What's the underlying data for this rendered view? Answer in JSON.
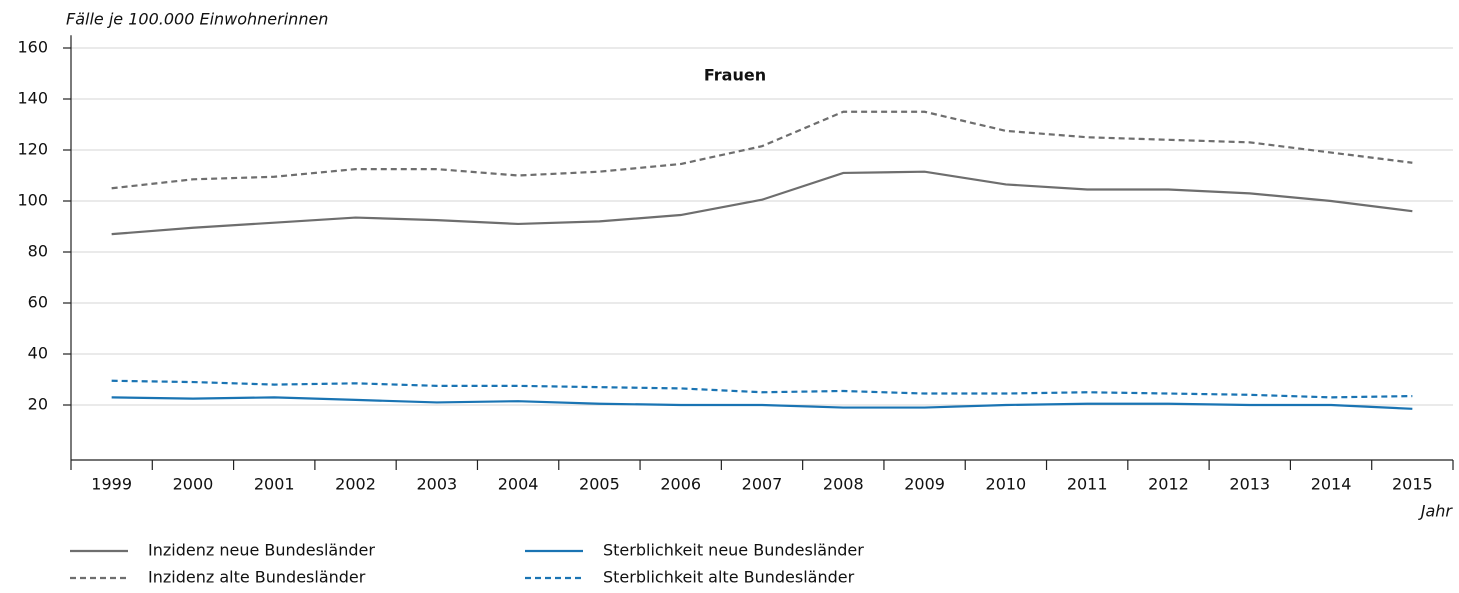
{
  "chart_data": {
    "type": "line",
    "title": "Frauen",
    "y_label": "Fälle je 100.000 Einwohnerinnen",
    "x_label": "Jahr",
    "categories": [
      "1999",
      "2000",
      "2001",
      "2002",
      "2003",
      "2004",
      "2005",
      "2006",
      "2007",
      "2008",
      "2009",
      "2010",
      "2011",
      "2012",
      "2013",
      "2014",
      "2015"
    ],
    "series": [
      {
        "name": "Inzidenz neue Bundesländer",
        "color": "#6e6e6e",
        "dashed": false,
        "values": [
          87,
          89.5,
          91.5,
          93.5,
          92.5,
          91,
          92,
          94.5,
          100.5,
          111,
          111.5,
          106.5,
          104.5,
          104.5,
          103,
          100,
          96
        ]
      },
      {
        "name": "Inzidenz alte Bundesländer",
        "color": "#6e6e6e",
        "dashed": true,
        "values": [
          105,
          108.5,
          109.5,
          112.5,
          112.5,
          110,
          111.5,
          114.5,
          121.5,
          135,
          135,
          127.5,
          125,
          124,
          123,
          119,
          115
        ]
      },
      {
        "name": "Sterblichkeit neue Bundesländer",
        "color": "#1a74b3",
        "dashed": false,
        "values": [
          23,
          22.5,
          23,
          22,
          21,
          21.5,
          20.5,
          20,
          20,
          19,
          19,
          20,
          20.5,
          20.5,
          20,
          20,
          18.5
        ]
      },
      {
        "name": "Sterblichkeit alte Bundesländer",
        "color": "#1a74b3",
        "dashed": true,
        "values": [
          29.5,
          29,
          28,
          28.5,
          27.5,
          27.5,
          27,
          26.5,
          25,
          25.5,
          24.5,
          24.5,
          25,
          24.5,
          24,
          23,
          23.5
        ]
      }
    ],
    "ylim": [
      0,
      165
    ],
    "yticks": [
      20,
      40,
      60,
      80,
      100,
      120,
      140,
      160
    ],
    "grid": true
  }
}
